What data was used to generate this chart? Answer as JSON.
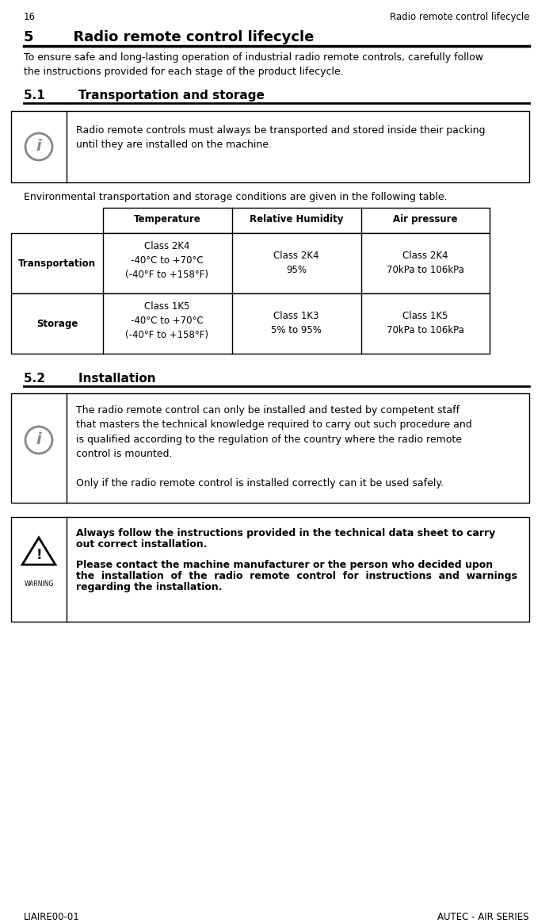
{
  "page_number": "16",
  "page_header_right": "Radio remote control lifecycle",
  "section_title": "5        Radio remote control lifecycle",
  "section_intro": "To ensure safe and long-lasting operation of industrial radio remote controls, carefully follow\nthe instructions provided for each stage of the product lifecycle.",
  "subsection1_title": "5.1        Transportation and storage",
  "info_box1_text": "Radio remote controls must always be transported and stored inside their packing\nuntil they are installed on the machine.",
  "table_intro": "Environmental transportation and storage conditions are given in the following table.",
  "table_headers": [
    "Temperature",
    "Relative Humidity",
    "Air pressure"
  ],
  "table_row1_label": "Transportation",
  "table_row1_col1": "Class 2K4\n-40°C to +70°C\n(-40°F to +158°F)",
  "table_row1_col2": "Class 2K4\n95%",
  "table_row1_col3": "Class 2K4\n70kPa to 106kPa",
  "table_row2_label": "Storage",
  "table_row2_col1": "Class 1K5\n-40°C to +70°C\n(-40°F to +158°F)",
  "table_row2_col2": "Class 1K3\n5% to 95%",
  "table_row2_col3": "Class 1K5\n70kPa to 106kPa",
  "subsection2_title": "5.2        Installation",
  "info_box2_text": "The radio remote control can only be installed and tested by competent staff\nthat masters the technical knowledge required to carry out such procedure and\nis qualified according to the regulation of the country where the radio remote\ncontrol is mounted.\n\nOnly if the radio remote control is installed correctly can it be used safely.",
  "warning_line1": "Always follow the instructions provided in the technical data sheet to carry",
  "warning_line2": "out correct installation.",
  "warning_line3": "Please contact the machine manufacturer or the person who decided upon",
  "warning_line4": "the  installation  of  the  radio  remote  control  for  instructions  and  warnings",
  "warning_line5": "regarding the installation.",
  "footer_left": "LIAIRE00-01",
  "footer_right": "AUTEC - AIR SERIES",
  "bg_color": "#ffffff",
  "text_color": "#000000"
}
